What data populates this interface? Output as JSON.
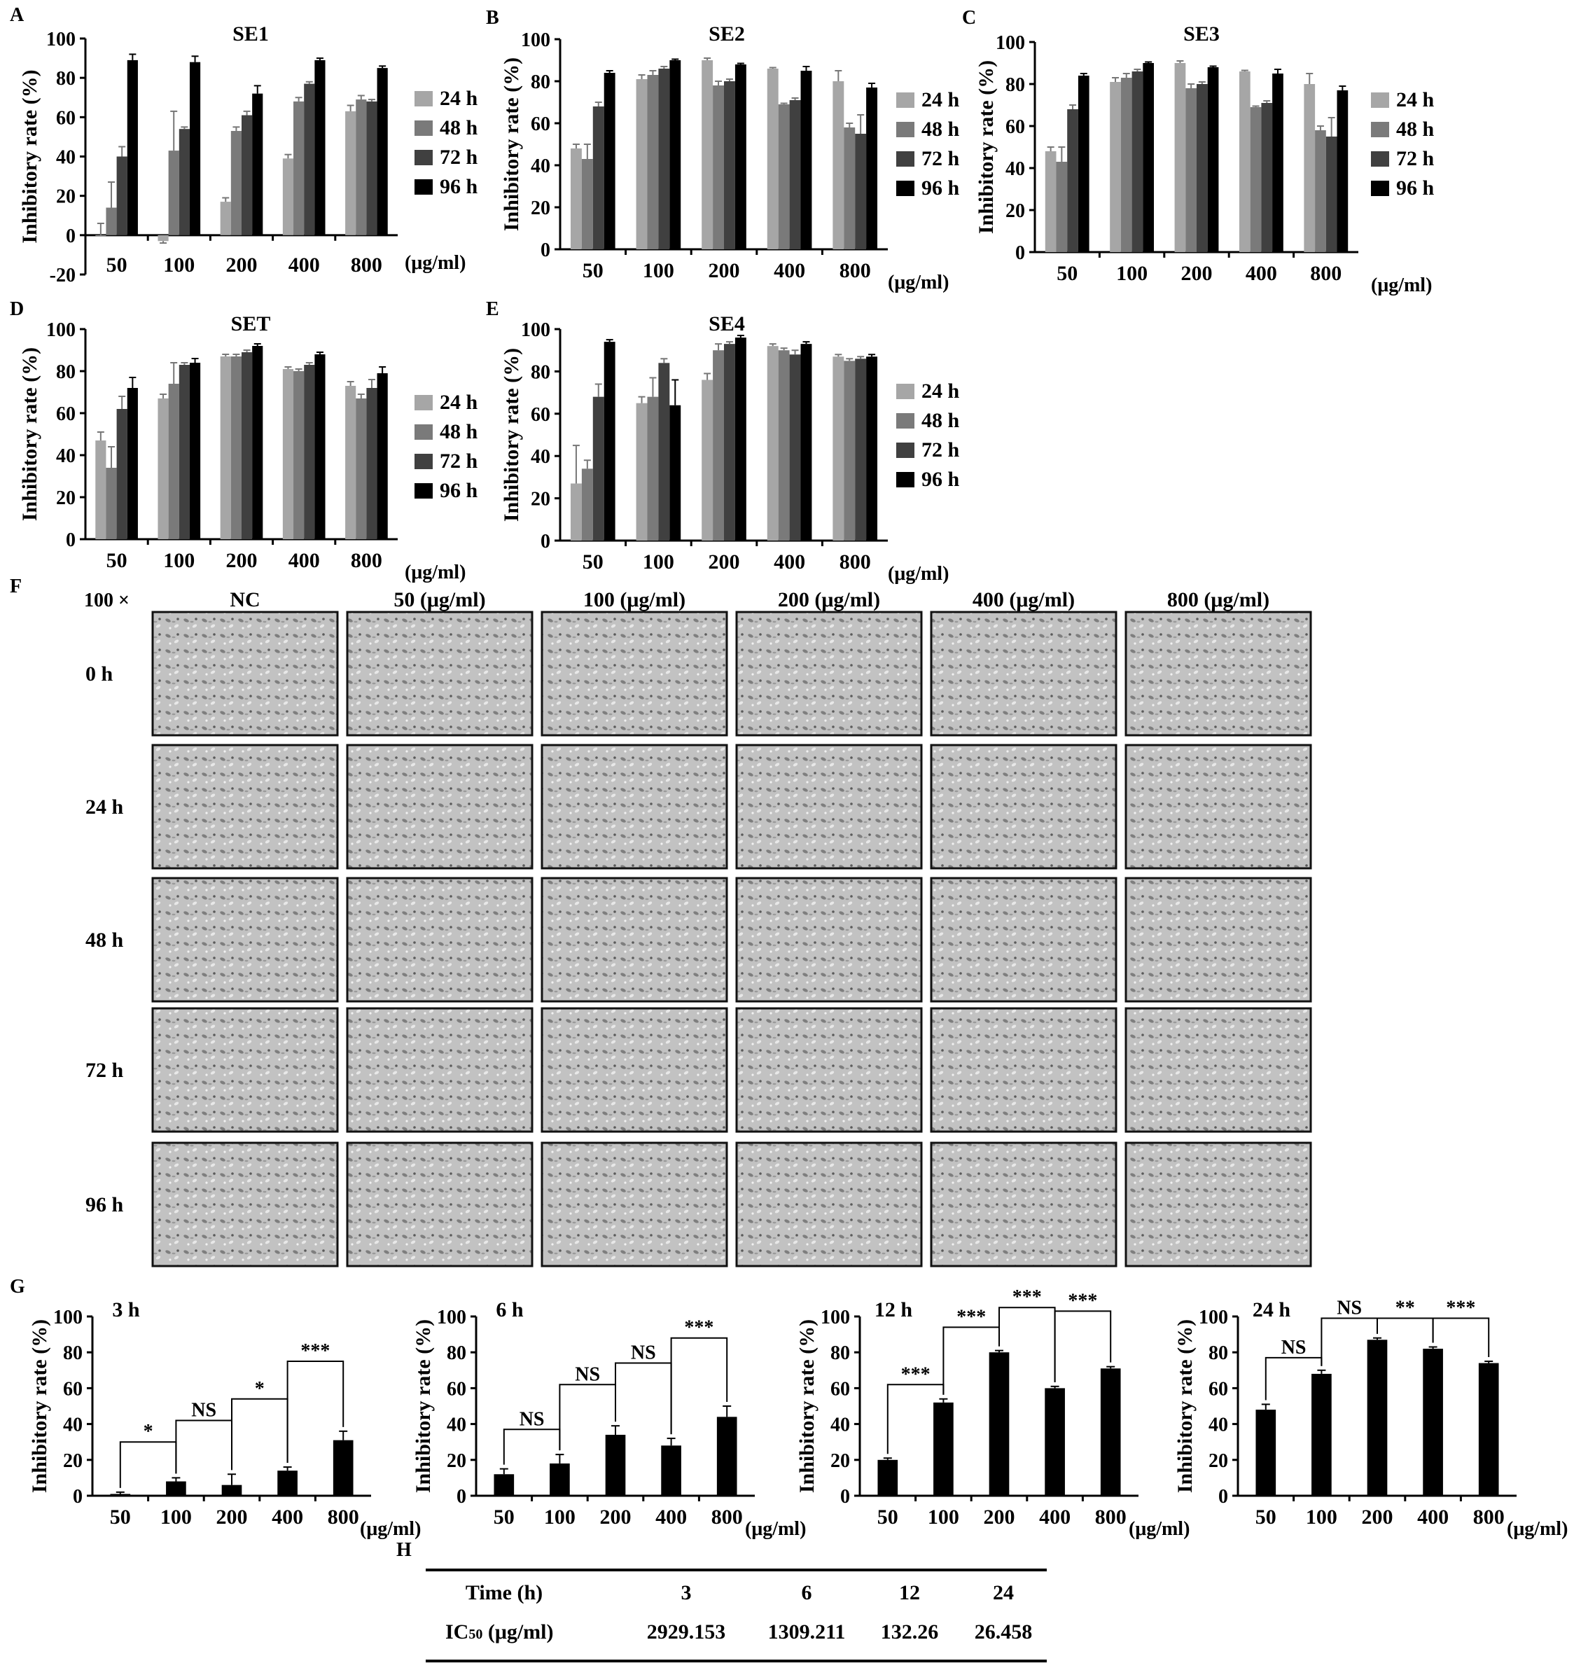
{
  "figure": {
    "panel_A": "A",
    "panel_B": "B",
    "panel_C": "C",
    "panel_D": "D",
    "panel_E": "E",
    "panel_F": "F",
    "panel_G": "G",
    "panel_H": "H"
  },
  "chart_data": [
    {
      "id": "A",
      "type": "bar",
      "title": "SE1",
      "ylabel": "Inhibitory rate (%)",
      "xlabel": "(μg/ml)",
      "ylim": [
        -20,
        100
      ],
      "yticks": [
        -20,
        0,
        20,
        40,
        60,
        80,
        100
      ],
      "categories": [
        "50",
        "100",
        "200",
        "400",
        "800"
      ],
      "series": [
        {
          "name": "24 h",
          "color": "#a6a6a6",
          "values": [
            0,
            -3,
            17,
            39,
            63
          ],
          "errors": [
            6,
            1,
            2,
            2,
            3
          ]
        },
        {
          "name": "48 h",
          "color": "#7a7a7a",
          "values": [
            14,
            43,
            53,
            68,
            69
          ],
          "errors": [
            13,
            20,
            2,
            2,
            2
          ]
        },
        {
          "name": "72 h",
          "color": "#404040",
          "values": [
            40,
            54,
            61,
            77,
            68
          ],
          "errors": [
            5,
            1,
            2,
            1,
            1
          ]
        },
        {
          "name": "96 h",
          "color": "#000000",
          "values": [
            89,
            88,
            72,
            89,
            85
          ],
          "errors": [
            3,
            3,
            4,
            1,
            1
          ]
        }
      ]
    },
    {
      "id": "B",
      "type": "bar",
      "title": "SE2",
      "ylabel": "Inhibitory rate (%)",
      "xlabel": "(μg/ml)",
      "ylim": [
        0,
        100
      ],
      "yticks": [
        0,
        20,
        40,
        60,
        80,
        100
      ],
      "categories": [
        "50",
        "100",
        "200",
        "400",
        "800"
      ],
      "series": [
        {
          "name": "24 h",
          "color": "#a6a6a6",
          "values": [
            48,
            81,
            90,
            86,
            80
          ],
          "errors": [
            2,
            2,
            1,
            0.5,
            5
          ]
        },
        {
          "name": "48 h",
          "color": "#7a7a7a",
          "values": [
            43,
            83,
            78,
            69,
            58
          ],
          "errors": [
            7,
            2,
            2,
            0.5,
            2
          ]
        },
        {
          "name": "72 h",
          "color": "#404040",
          "values": [
            68,
            86,
            80,
            71,
            55
          ],
          "errors": [
            2,
            1,
            1,
            1,
            9
          ]
        },
        {
          "name": "96 h",
          "color": "#000000",
          "values": [
            84,
            90,
            88,
            85,
            77
          ],
          "errors": [
            1,
            0.5,
            0.5,
            2,
            2
          ]
        }
      ]
    },
    {
      "id": "C",
      "type": "bar",
      "title": "SE3",
      "ylabel": "Inhibitory rate (%)",
      "xlabel": "(μg/ml)",
      "ylim": [
        0,
        100
      ],
      "yticks": [
        0,
        20,
        40,
        60,
        80,
        100
      ],
      "categories": [
        "50",
        "100",
        "200",
        "400",
        "800"
      ],
      "series": [
        {
          "name": "24 h",
          "color": "#a6a6a6",
          "values": [
            48,
            81,
            90,
            86,
            80
          ],
          "errors": [
            2,
            2,
            1,
            0.5,
            5
          ]
        },
        {
          "name": "48 h",
          "color": "#7a7a7a",
          "values": [
            43,
            83,
            78,
            69,
            58
          ],
          "errors": [
            7,
            2,
            2,
            0.5,
            2
          ]
        },
        {
          "name": "72 h",
          "color": "#404040",
          "values": [
            68,
            86,
            80,
            71,
            55
          ],
          "errors": [
            2,
            1,
            1,
            1,
            9
          ]
        },
        {
          "name": "96 h",
          "color": "#000000",
          "values": [
            84,
            90,
            88,
            85,
            77
          ],
          "errors": [
            1,
            0.5,
            0.5,
            2,
            2
          ]
        }
      ]
    },
    {
      "id": "D",
      "type": "bar",
      "title": "SET",
      "ylabel": "Inhibitory rate (%)",
      "xlabel": "(μg/ml)",
      "ylim": [
        0,
        100
      ],
      "yticks": [
        0,
        20,
        40,
        60,
        80,
        100
      ],
      "categories": [
        "50",
        "100",
        "200",
        "400",
        "800"
      ],
      "series": [
        {
          "name": "24 h",
          "color": "#a6a6a6",
          "values": [
            47,
            67,
            87,
            81,
            73
          ],
          "errors": [
            4,
            2,
            1,
            1,
            2
          ]
        },
        {
          "name": "48 h",
          "color": "#7a7a7a",
          "values": [
            34,
            74,
            87,
            80,
            67
          ],
          "errors": [
            10,
            10,
            1,
            1,
            2
          ]
        },
        {
          "name": "72 h",
          "color": "#404040",
          "values": [
            62,
            83,
            89,
            83,
            72
          ],
          "errors": [
            6,
            1,
            1,
            1,
            4
          ]
        },
        {
          "name": "96 h",
          "color": "#000000",
          "values": [
            72,
            84,
            92,
            88,
            79
          ],
          "errors": [
            5,
            2,
            1,
            1,
            3
          ]
        }
      ]
    },
    {
      "id": "E",
      "type": "bar",
      "title": "SE4",
      "ylabel": "Inhibitory rate (%)",
      "xlabel": "(μg/ml)",
      "ylim": [
        0,
        100
      ],
      "yticks": [
        0,
        20,
        40,
        60,
        80,
        100
      ],
      "categories": [
        "50",
        "100",
        "200",
        "400",
        "800"
      ],
      "series": [
        {
          "name": "24 h",
          "color": "#a6a6a6",
          "values": [
            27,
            65,
            76,
            92,
            87
          ],
          "errors": [
            18,
            3,
            3,
            1,
            1
          ]
        },
        {
          "name": "48 h",
          "color": "#7a7a7a",
          "values": [
            34,
            68,
            90,
            90,
            85
          ],
          "errors": [
            4,
            9,
            3,
            1,
            1
          ]
        },
        {
          "name": "72 h",
          "color": "#404040",
          "values": [
            68,
            84,
            93,
            88,
            86
          ],
          "errors": [
            6,
            2,
            1,
            2,
            1
          ]
        },
        {
          "name": "96 h",
          "color": "#000000",
          "values": [
            94,
            64,
            96,
            93,
            87
          ],
          "errors": [
            1,
            12,
            1,
            1,
            1
          ]
        }
      ]
    },
    {
      "id": "G1",
      "type": "bar",
      "title": "3 h",
      "ylabel": "Inhibitory rate (%)",
      "xlabel": "(μg/ml)",
      "ylim": [
        0,
        100
      ],
      "yticks": [
        0,
        20,
        40,
        60,
        80,
        100
      ],
      "categories": [
        "50",
        "100",
        "200",
        "400",
        "800"
      ],
      "values": [
        1,
        8,
        6,
        14,
        31
      ],
      "errors": [
        1,
        2,
        6,
        2,
        5
      ],
      "significance": [
        {
          "from": 0,
          "to": 1,
          "label": "*",
          "level": 30
        },
        {
          "from": 1,
          "to": 2,
          "label": "NS",
          "level": 42
        },
        {
          "from": 2,
          "to": 3,
          "label": "*",
          "level": 54
        },
        {
          "from": 3,
          "to": 4,
          "label": "***",
          "level": 75
        }
      ]
    },
    {
      "id": "G2",
      "type": "bar",
      "title": "6 h",
      "ylabel": "Inhibitory rate (%)",
      "xlabel": "(μg/ml)",
      "ylim": [
        0,
        100
      ],
      "yticks": [
        0,
        20,
        40,
        60,
        80,
        100
      ],
      "categories": [
        "50",
        "100",
        "200",
        "400",
        "800"
      ],
      "values": [
        12,
        18,
        34,
        28,
        44
      ],
      "errors": [
        3,
        5,
        5,
        4,
        6
      ],
      "significance": [
        {
          "from": 0,
          "to": 1,
          "label": "NS",
          "level": 37
        },
        {
          "from": 1,
          "to": 2,
          "label": "NS",
          "level": 62
        },
        {
          "from": 2,
          "to": 3,
          "label": "NS",
          "level": 74
        },
        {
          "from": 3,
          "to": 4,
          "label": "***",
          "level": 88
        }
      ]
    },
    {
      "id": "G3",
      "type": "bar",
      "title": "12 h",
      "ylabel": "Inhibitory rate (%)",
      "xlabel": "(μg/ml)",
      "ylim": [
        0,
        100
      ],
      "yticks": [
        0,
        20,
        40,
        60,
        80,
        100
      ],
      "categories": [
        "50",
        "100",
        "200",
        "400",
        "800"
      ],
      "values": [
        20,
        52,
        80,
        60,
        71
      ],
      "errors": [
        1,
        2,
        1,
        1,
        1
      ],
      "significance": [
        {
          "from": 0,
          "to": 1,
          "label": "***",
          "level": 62
        },
        {
          "from": 1,
          "to": 2,
          "label": "***",
          "level": 94
        },
        {
          "from": 2,
          "to": 3,
          "label": "***",
          "level": 105
        },
        {
          "from": 3,
          "to": 4,
          "label": "***",
          "level": 103
        }
      ]
    },
    {
      "id": "G4",
      "type": "bar",
      "title": "24 h",
      "ylabel": "Inhibitory rate (%)",
      "xlabel": "(μg/ml)",
      "ylim": [
        0,
        100
      ],
      "yticks": [
        0,
        20,
        40,
        60,
        80,
        100
      ],
      "categories": [
        "50",
        "100",
        "200",
        "400",
        "800"
      ],
      "values": [
        48,
        68,
        87,
        82,
        74
      ],
      "errors": [
        3,
        2,
        1,
        1,
        1
      ],
      "significance": [
        {
          "from": 0,
          "to": 1,
          "label": "NS",
          "level": 77
        },
        {
          "from": 1,
          "to": 2,
          "label": "NS",
          "level": 99
        },
        {
          "from": 2,
          "to": 3,
          "label": "**",
          "level": 99
        },
        {
          "from": 3,
          "to": 4,
          "label": "***",
          "level": 99
        }
      ]
    }
  ],
  "micrographs": {
    "magnification": "100 ×",
    "columns": [
      "NC",
      "50  (μg/ml)",
      "100  (μg/ml)",
      "200  (μg/ml)",
      "400  (μg/ml)",
      "800  (μg/ml)"
    ],
    "rows": [
      "0 h",
      "24 h",
      "48 h",
      "72 h",
      "96 h"
    ]
  },
  "table": {
    "headers": [
      "Time (h)",
      "3",
      "6",
      "12",
      "24"
    ],
    "row_label_main": "IC",
    "row_label_sub": "50",
    "row_label_unit": " (μg/ml)",
    "values": [
      "2929.153",
      "1309.211",
      "132.26",
      "26.458"
    ]
  }
}
